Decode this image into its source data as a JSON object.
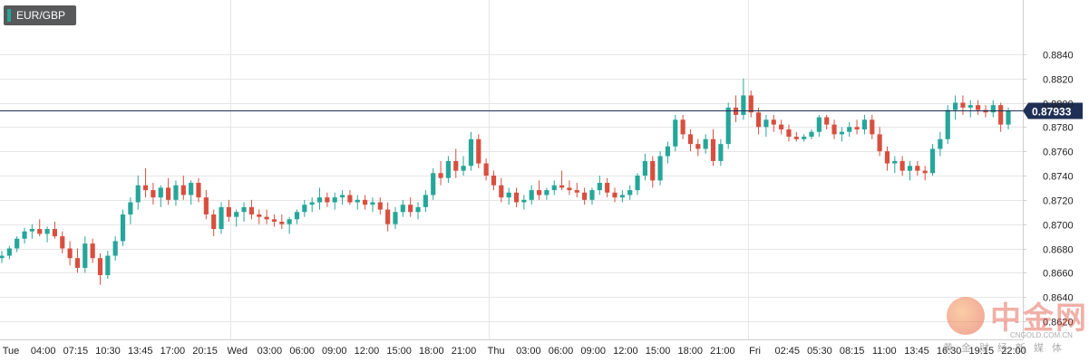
{
  "symbol_badge": "EUR/GBP",
  "colors": {
    "up": "#26a69a",
    "down": "#d84f3f",
    "current_price_line": "#1f2f55",
    "grid": "#e6e6e6",
    "axis_text": "#222222"
  },
  "watermark": {
    "name": "中金网",
    "domain": "CNGOLD.COM.CN",
    "subtitle": "黄金财经新媒体"
  },
  "chart_data": {
    "type": "candlestick",
    "title": "",
    "xlabel": "",
    "ylabel": "",
    "ylim": [
      0.862,
      0.886
    ],
    "y_ticks": [
      "0.8840",
      "0.8820",
      "0.8800",
      "0.8780",
      "0.8760",
      "0.8740",
      "0.8720",
      "0.8700",
      "0.8680",
      "0.8660",
      "0.8640",
      "0.8620"
    ],
    "x_ticks": [
      "Tue",
      "04:00",
      "07:15",
      "10:30",
      "13:45",
      "17:00",
      "20:15",
      "Wed",
      "03:00",
      "06:00",
      "09:00",
      "12:00",
      "15:00",
      "18:00",
      "21:00",
      "Thu",
      "03:00",
      "06:00",
      "09:00",
      "12:00",
      "15:00",
      "18:00",
      "21:00",
      "Fri",
      "02:45",
      "05:30",
      "08:15",
      "11:00",
      "13:45",
      "16:30",
      "19:15",
      "22:00"
    ],
    "current_price": 0.87933,
    "current_price_label": "0.87933",
    "grid": true,
    "series": [
      {
        "values": [
          [
            0.8672,
            0.8678,
            0.8668,
            0.8674
          ],
          [
            0.8674,
            0.8682,
            0.8671,
            0.868
          ],
          [
            0.868,
            0.869,
            0.8677,
            0.8688
          ],
          [
            0.8688,
            0.8697,
            0.8684,
            0.8694
          ],
          [
            0.8694,
            0.87,
            0.8688,
            0.8696
          ],
          [
            0.8696,
            0.8704,
            0.869,
            0.8692
          ],
          [
            0.8692,
            0.8698,
            0.8685,
            0.8696
          ],
          [
            0.8696,
            0.8702,
            0.8688,
            0.869
          ],
          [
            0.869,
            0.8694,
            0.8676,
            0.868
          ],
          [
            0.868,
            0.8686,
            0.8666,
            0.8672
          ],
          [
            0.8672,
            0.868,
            0.866,
            0.8664
          ],
          [
            0.8664,
            0.869,
            0.866,
            0.8684
          ],
          [
            0.8684,
            0.8688,
            0.8668,
            0.8672
          ],
          [
            0.8672,
            0.8676,
            0.865,
            0.8658
          ],
          [
            0.8658,
            0.8678,
            0.8655,
            0.8674
          ],
          [
            0.8674,
            0.869,
            0.867,
            0.8686
          ],
          [
            0.8686,
            0.8712,
            0.8682,
            0.8708
          ],
          [
            0.8708,
            0.8722,
            0.87,
            0.8718
          ],
          [
            0.8718,
            0.874,
            0.8712,
            0.8732
          ],
          [
            0.8732,
            0.8746,
            0.8722,
            0.8728
          ],
          [
            0.8728,
            0.8734,
            0.8716,
            0.8722
          ],
          [
            0.8722,
            0.8732,
            0.8714,
            0.873
          ],
          [
            0.873,
            0.8738,
            0.8716,
            0.872
          ],
          [
            0.872,
            0.8736,
            0.8715,
            0.8732
          ],
          [
            0.8732,
            0.874,
            0.872,
            0.8724
          ],
          [
            0.8724,
            0.8736,
            0.8716,
            0.8734
          ],
          [
            0.8734,
            0.8738,
            0.8718,
            0.8722
          ],
          [
            0.8722,
            0.8728,
            0.8704,
            0.8708
          ],
          [
            0.8708,
            0.8712,
            0.869,
            0.8696
          ],
          [
            0.8696,
            0.8718,
            0.8692,
            0.8714
          ],
          [
            0.8714,
            0.872,
            0.8702,
            0.8706
          ],
          [
            0.8706,
            0.8712,
            0.8698,
            0.871
          ],
          [
            0.871,
            0.8718,
            0.8702,
            0.8714
          ],
          [
            0.8714,
            0.872,
            0.8704,
            0.8708
          ],
          [
            0.8708,
            0.8712,
            0.87,
            0.8706
          ],
          [
            0.8706,
            0.8712,
            0.87,
            0.8704
          ],
          [
            0.8704,
            0.8708,
            0.8698,
            0.8702
          ],
          [
            0.8702,
            0.8708,
            0.8696,
            0.87
          ],
          [
            0.87,
            0.8706,
            0.8692,
            0.8704
          ],
          [
            0.8704,
            0.8712,
            0.87,
            0.871
          ],
          [
            0.871,
            0.872,
            0.8706,
            0.8716
          ],
          [
            0.8716,
            0.8722,
            0.871,
            0.8718
          ],
          [
            0.8718,
            0.873,
            0.8712,
            0.8722
          ],
          [
            0.8722,
            0.8726,
            0.8714,
            0.8718
          ],
          [
            0.8718,
            0.8726,
            0.8712,
            0.8722
          ],
          [
            0.8722,
            0.8728,
            0.8716,
            0.8724
          ],
          [
            0.8724,
            0.8728,
            0.8716,
            0.8718
          ],
          [
            0.8718,
            0.8724,
            0.8712,
            0.872
          ],
          [
            0.872,
            0.8724,
            0.8712,
            0.8716
          ],
          [
            0.8716,
            0.8722,
            0.871,
            0.8718
          ],
          [
            0.8718,
            0.8722,
            0.8708,
            0.8712
          ],
          [
            0.8712,
            0.8718,
            0.8694,
            0.87
          ],
          [
            0.87,
            0.8714,
            0.8696,
            0.871
          ],
          [
            0.871,
            0.872,
            0.8706,
            0.8716
          ],
          [
            0.8716,
            0.8722,
            0.8706,
            0.871
          ],
          [
            0.871,
            0.8718,
            0.8704,
            0.8714
          ],
          [
            0.8714,
            0.8728,
            0.871,
            0.8724
          ],
          [
            0.8724,
            0.8746,
            0.872,
            0.8742
          ],
          [
            0.8742,
            0.8752,
            0.8732,
            0.8738
          ],
          [
            0.8738,
            0.8756,
            0.8734,
            0.8752
          ],
          [
            0.8752,
            0.8762,
            0.8738,
            0.8744
          ],
          [
            0.8744,
            0.8756,
            0.874,
            0.8748
          ],
          [
            0.8748,
            0.8776,
            0.8744,
            0.877
          ],
          [
            0.877,
            0.8774,
            0.8746,
            0.875
          ],
          [
            0.875,
            0.8754,
            0.8736,
            0.874
          ],
          [
            0.874,
            0.8744,
            0.8728,
            0.8732
          ],
          [
            0.8732,
            0.8738,
            0.8718,
            0.8722
          ],
          [
            0.8722,
            0.873,
            0.8716,
            0.8726
          ],
          [
            0.8726,
            0.873,
            0.8714,
            0.8718
          ],
          [
            0.8718,
            0.8724,
            0.8712,
            0.872
          ],
          [
            0.872,
            0.8732,
            0.8716,
            0.8728
          ],
          [
            0.8728,
            0.8736,
            0.872,
            0.8724
          ],
          [
            0.8724,
            0.873,
            0.872,
            0.8728
          ],
          [
            0.8728,
            0.8736,
            0.8724,
            0.8732
          ],
          [
            0.8732,
            0.8744,
            0.8728,
            0.873
          ],
          [
            0.873,
            0.8736,
            0.8724,
            0.8728
          ],
          [
            0.8728,
            0.8734,
            0.8722,
            0.8726
          ],
          [
            0.8726,
            0.873,
            0.8716,
            0.872
          ],
          [
            0.872,
            0.873,
            0.8716,
            0.8728
          ],
          [
            0.8728,
            0.874,
            0.8724,
            0.8734
          ],
          [
            0.8734,
            0.8738,
            0.8722,
            0.8726
          ],
          [
            0.8726,
            0.873,
            0.8718,
            0.8722
          ],
          [
            0.8722,
            0.8728,
            0.8718,
            0.8724
          ],
          [
            0.8724,
            0.8732,
            0.872,
            0.8728
          ],
          [
            0.8728,
            0.8742,
            0.8724,
            0.874
          ],
          [
            0.874,
            0.8758,
            0.8736,
            0.8752
          ],
          [
            0.8752,
            0.8756,
            0.873,
            0.8736
          ],
          [
            0.8736,
            0.876,
            0.8732,
            0.8756
          ],
          [
            0.8756,
            0.8768,
            0.875,
            0.8764
          ],
          [
            0.8764,
            0.879,
            0.876,
            0.8786
          ],
          [
            0.8786,
            0.879,
            0.877,
            0.8774
          ],
          [
            0.8774,
            0.8778,
            0.876,
            0.8766
          ],
          [
            0.8766,
            0.877,
            0.8756,
            0.8762
          ],
          [
            0.8762,
            0.8774,
            0.8758,
            0.877
          ],
          [
            0.877,
            0.8778,
            0.8748,
            0.8752
          ],
          [
            0.8752,
            0.877,
            0.8748,
            0.8766
          ],
          [
            0.8766,
            0.88,
            0.8762,
            0.8796
          ],
          [
            0.8796,
            0.8806,
            0.8784,
            0.879
          ],
          [
            0.879,
            0.882,
            0.8786,
            0.8806
          ],
          [
            0.8806,
            0.881,
            0.8788,
            0.8792
          ],
          [
            0.8792,
            0.8796,
            0.8774,
            0.878
          ],
          [
            0.878,
            0.879,
            0.8772,
            0.8786
          ],
          [
            0.8786,
            0.879,
            0.8776,
            0.8782
          ],
          [
            0.8782,
            0.8786,
            0.8774,
            0.8778
          ],
          [
            0.8778,
            0.8782,
            0.8768,
            0.8772
          ],
          [
            0.8772,
            0.8776,
            0.8768,
            0.877
          ],
          [
            0.877,
            0.8774,
            0.8768,
            0.8772
          ],
          [
            0.8772,
            0.8778,
            0.877,
            0.8776
          ],
          [
            0.8776,
            0.879,
            0.8772,
            0.8788
          ],
          [
            0.8788,
            0.879,
            0.8778,
            0.8782
          ],
          [
            0.8782,
            0.8786,
            0.877,
            0.8774
          ],
          [
            0.8774,
            0.878,
            0.8768,
            0.8776
          ],
          [
            0.8776,
            0.8784,
            0.8772,
            0.878
          ],
          [
            0.878,
            0.8786,
            0.8774,
            0.8778
          ],
          [
            0.8778,
            0.879,
            0.8774,
            0.8786
          ],
          [
            0.8786,
            0.879,
            0.877,
            0.8774
          ],
          [
            0.8774,
            0.878,
            0.8756,
            0.876
          ],
          [
            0.876,
            0.8764,
            0.8744,
            0.875
          ],
          [
            0.875,
            0.8756,
            0.8742,
            0.8752
          ],
          [
            0.8752,
            0.8756,
            0.874,
            0.8744
          ],
          [
            0.8744,
            0.8752,
            0.8736,
            0.8748
          ],
          [
            0.8748,
            0.8752,
            0.874,
            0.8744
          ],
          [
            0.8744,
            0.8748,
            0.8736,
            0.8742
          ],
          [
            0.8742,
            0.8766,
            0.874,
            0.8762
          ],
          [
            0.8762,
            0.8776,
            0.8756,
            0.877
          ],
          [
            0.877,
            0.8798,
            0.8766,
            0.8794
          ],
          [
            0.8794,
            0.8806,
            0.8786,
            0.88
          ],
          [
            0.88,
            0.8806,
            0.879,
            0.8796
          ],
          [
            0.8796,
            0.8802,
            0.8788,
            0.8798
          ],
          [
            0.8798,
            0.8802,
            0.879,
            0.8794
          ],
          [
            0.8794,
            0.8798,
            0.8788,
            0.8792
          ],
          [
            0.8792,
            0.8802,
            0.8788,
            0.8798
          ],
          [
            0.8798,
            0.88,
            0.8776,
            0.8782
          ],
          [
            0.8782,
            0.8796,
            0.8778,
            0.8793
          ]
        ]
      }
    ]
  }
}
